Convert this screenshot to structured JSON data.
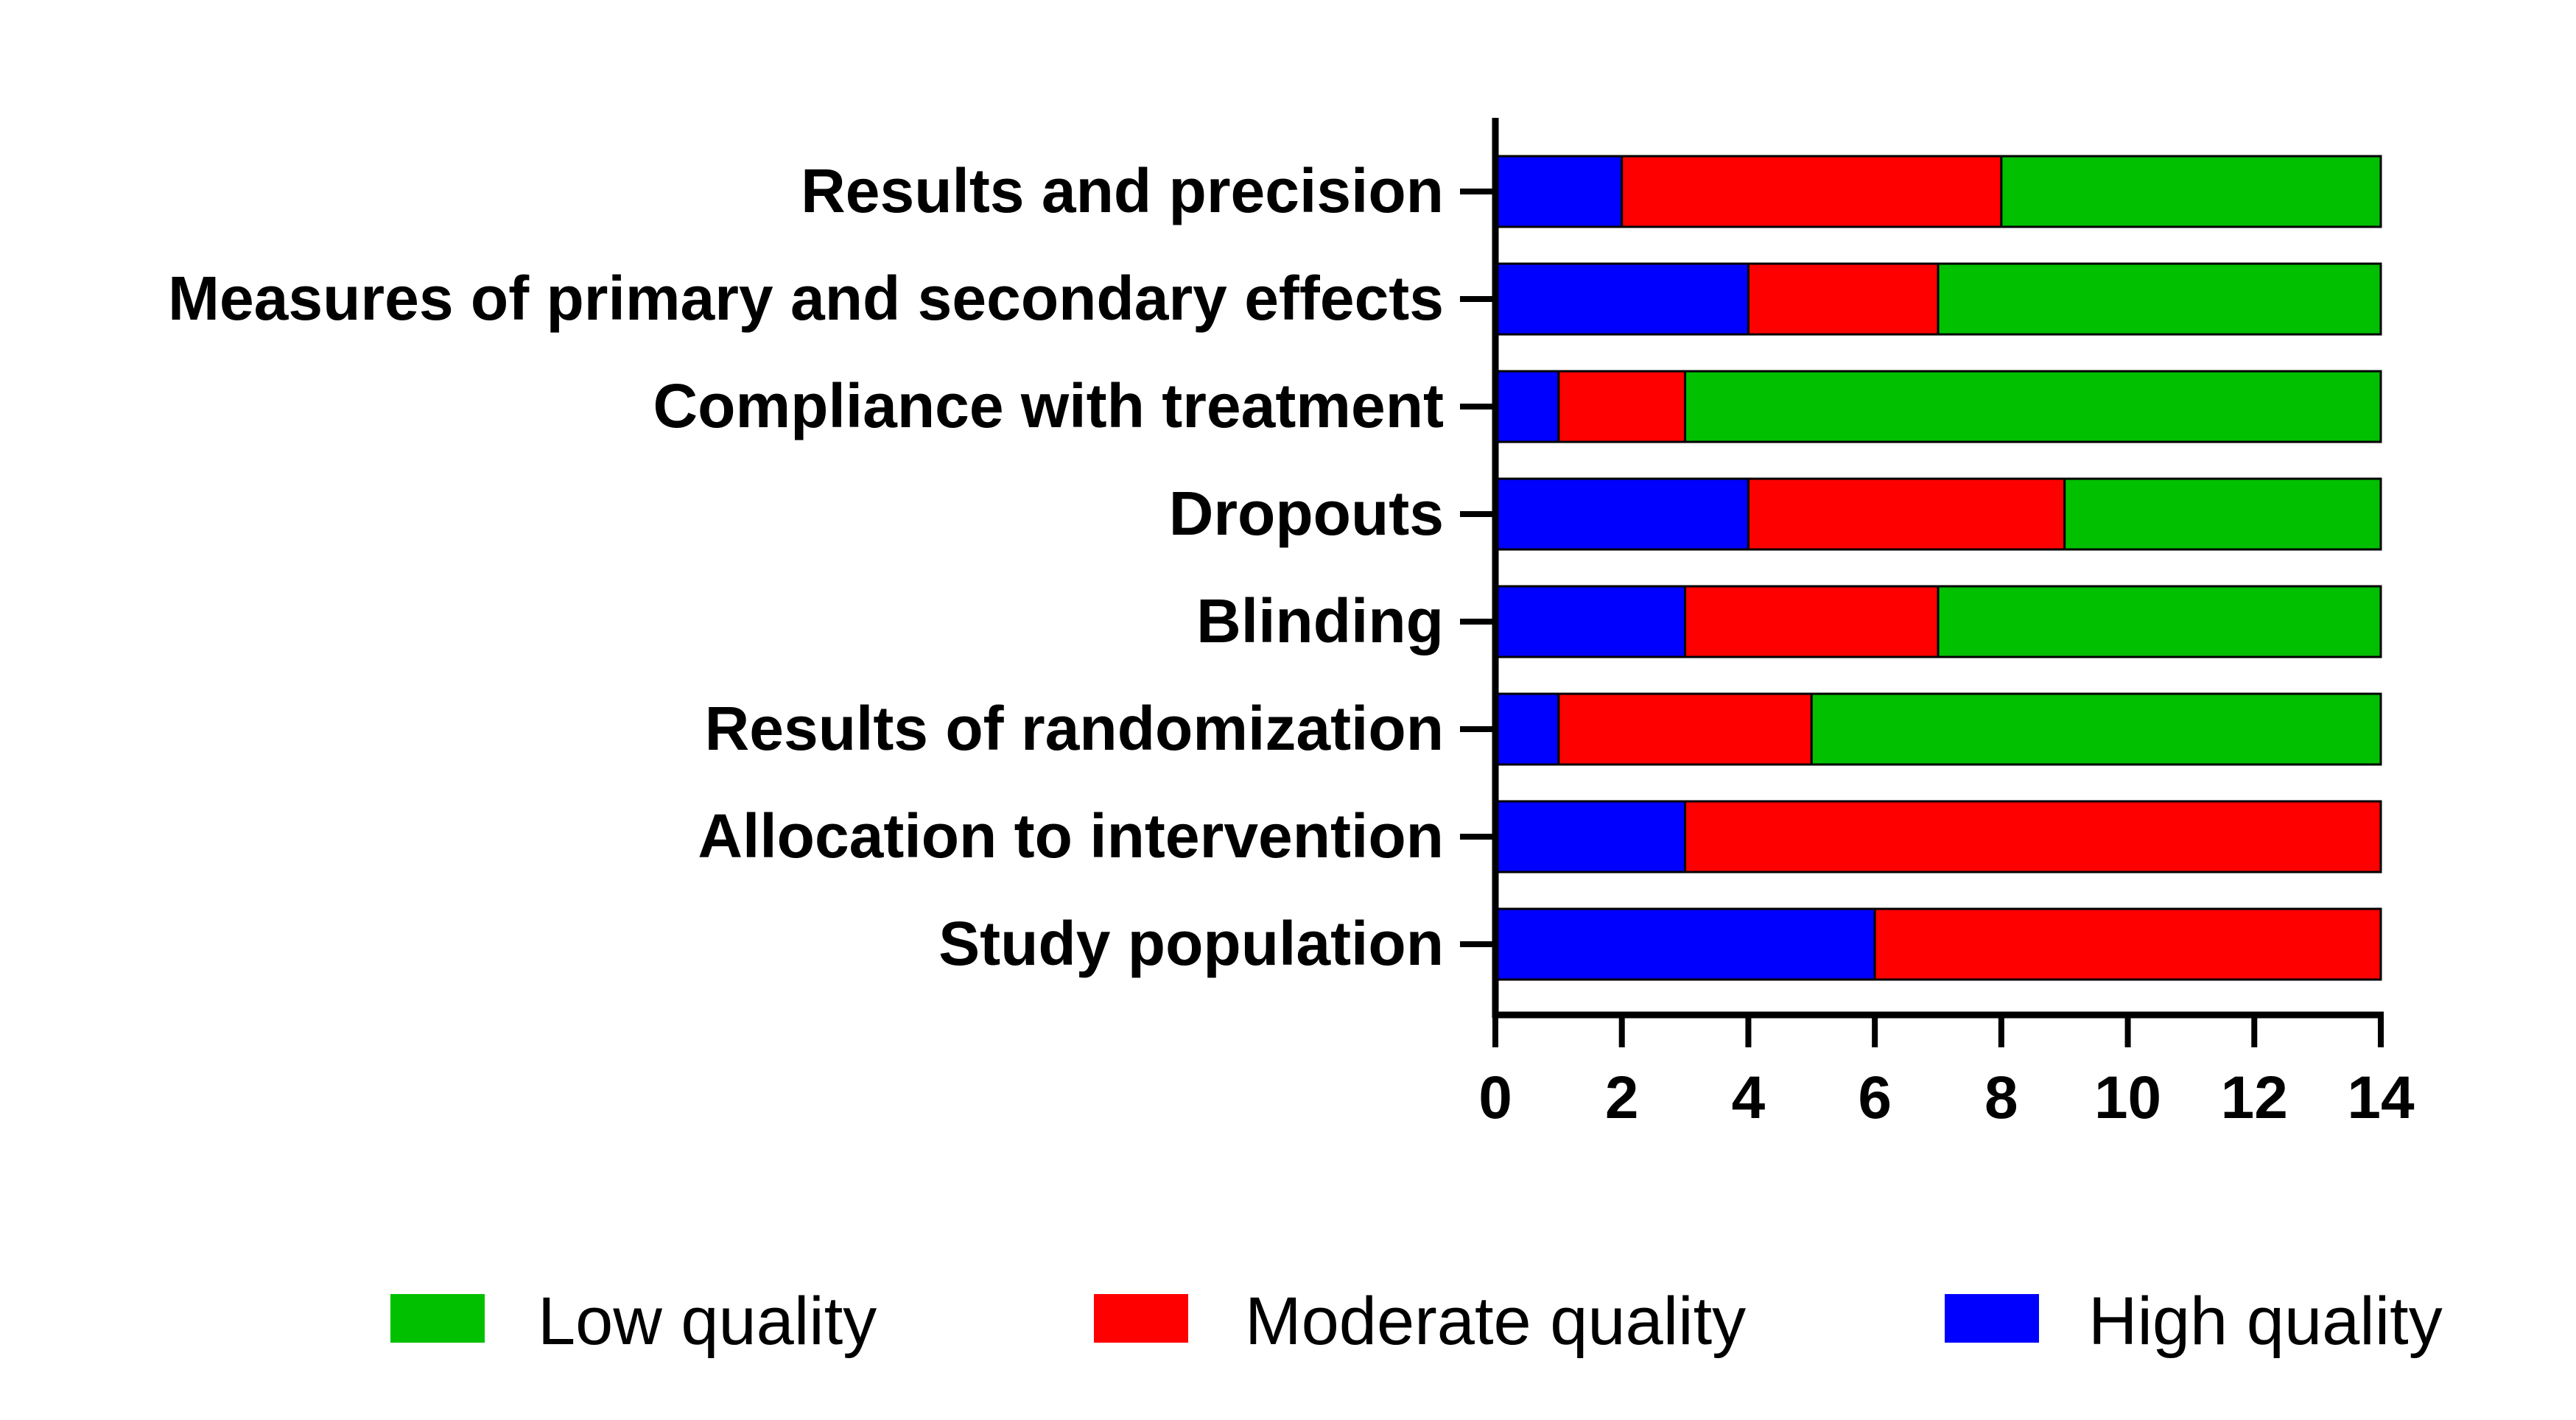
{
  "chart_data": {
    "type": "bar",
    "orientation": "horizontal",
    "stacked": true,
    "categories": [
      "Results and precision",
      "Measures of primary and secondary effects",
      "Compliance with treatment",
      "Dropouts",
      "Blinding",
      "Results of randomization",
      "Allocation to intervention",
      "Study population"
    ],
    "series": [
      {
        "name": "High quality",
        "color": "#0000ff",
        "values": [
          2,
          4,
          1,
          4,
          3,
          1,
          3,
          6
        ]
      },
      {
        "name": "Moderate quality",
        "color": "#ff0000",
        "values": [
          6,
          3,
          2,
          5,
          4,
          4,
          11,
          8
        ]
      },
      {
        "name": "Low quality",
        "color": "#00c000",
        "values": [
          6,
          7,
          11,
          5,
          7,
          9,
          0,
          0
        ]
      }
    ],
    "legend_order": [
      "Low quality",
      "Moderate quality",
      "High quality"
    ],
    "legend_position": "bottom",
    "x_ticks": [
      "0",
      "2",
      "4",
      "6",
      "8",
      "10",
      "12",
      "14"
    ],
    "xlim": [
      0,
      14
    ],
    "title": "",
    "xlabel": "",
    "ylabel": "",
    "grid": false
  }
}
